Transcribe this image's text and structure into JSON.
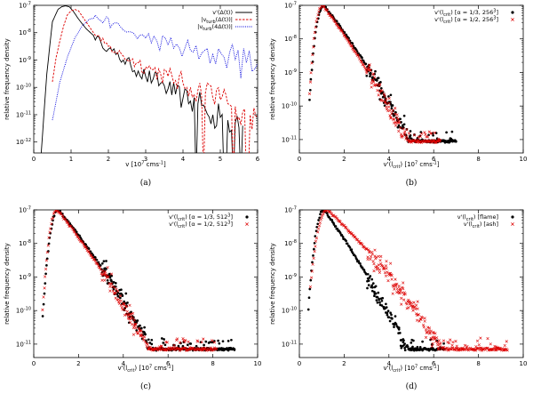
{
  "chart_data": [
    {
      "id": "a",
      "type": "line",
      "caption": "(a)",
      "xlabel": "v [10^7 cms^-1]",
      "ylabel": "relative frequency density",
      "xlim": [
        0,
        6
      ],
      "ylim_exp": [
        -12.4,
        -7
      ],
      "ylog": true,
      "xticks": [
        0,
        1,
        2,
        3,
        4,
        5,
        6
      ],
      "yticks_exp": [
        -12,
        -11,
        -10,
        -9,
        -8,
        -7
      ],
      "legend_position": "top-right",
      "series": [
        {
          "name": "v'(Δ(t))",
          "color": "#000000",
          "style": "solid",
          "x": [
            0.2,
            0.35,
            0.5,
            0.65,
            0.75,
            0.85,
            0.95,
            1.05,
            1.2,
            1.4,
            1.6,
            1.8,
            2.0,
            2.2,
            2.4,
            2.6,
            2.8,
            3.0,
            3.2,
            3.4,
            3.6,
            3.8,
            4.0,
            4.2,
            4.4,
            4.6,
            4.8,
            5.0,
            5.2,
            5.4,
            5.6
          ],
          "log10y": [
            -12.4,
            -9.5,
            -7.6,
            -7.15,
            -7.05,
            -7.02,
            -7.05,
            -7.2,
            -7.5,
            -7.85,
            -8.1,
            -8.35,
            -8.6,
            -8.8,
            -9.0,
            -9.2,
            -9.4,
            -9.6,
            -9.7,
            -9.85,
            -10.05,
            -10.25,
            -10.4,
            -10.5,
            -10.6,
            -10.8,
            -11.0,
            -11.1,
            -11.2,
            -11.3,
            -11.4
          ]
        },
        {
          "name": "|v_turb(Δ(t))|",
          "color": "#dd0000",
          "style": "dashed",
          "x": [
            0.5,
            0.6,
            0.7,
            0.8,
            0.9,
            1.0,
            1.1,
            1.2,
            1.4,
            1.6,
            1.8,
            2.0,
            2.2,
            2.4,
            2.6,
            2.8,
            3.0,
            3.2,
            3.4,
            3.6,
            3.8,
            4.0,
            4.2,
            4.4,
            4.6,
            4.8,
            5.0,
            5.2,
            5.4,
            5.6,
            5.8,
            6.0
          ],
          "log10y": [
            -9.8,
            -8.9,
            -8.3,
            -7.75,
            -7.35,
            -7.2,
            -7.15,
            -7.2,
            -7.6,
            -8.0,
            -8.3,
            -8.5,
            -8.7,
            -8.85,
            -9.0,
            -9.1,
            -9.25,
            -9.35,
            -9.5,
            -9.6,
            -9.75,
            -9.85,
            -10.0,
            -10.1,
            -10.2,
            -10.4,
            -10.45,
            -10.6,
            -10.7,
            -10.9,
            -11.0,
            -11.1
          ]
        },
        {
          "name": "|v_turb(4Δ(t))|",
          "color": "#0000dd",
          "style": "dotted",
          "x": [
            0.5,
            0.7,
            0.9,
            1.1,
            1.3,
            1.5,
            1.7,
            1.9,
            2.1,
            2.4,
            2.7,
            3.0,
            3.3,
            3.6,
            3.9,
            4.2,
            4.5,
            4.8,
            5.1,
            5.4,
            5.7,
            6.0
          ],
          "log10y": [
            -11.2,
            -9.8,
            -8.9,
            -8.2,
            -7.75,
            -7.5,
            -7.45,
            -7.55,
            -7.7,
            -7.9,
            -8.05,
            -8.2,
            -8.3,
            -8.45,
            -8.55,
            -8.65,
            -8.75,
            -8.8,
            -8.9,
            -9.0,
            -9.1,
            -9.15
          ]
        }
      ]
    },
    {
      "id": "b",
      "type": "scatter",
      "caption": "(b)",
      "xlabel": "v'(l_crit) [10^7 cms^-1]",
      "ylabel": "relative frequency density",
      "xlim": [
        0,
        10
      ],
      "ylim_exp": [
        -11.4,
        -7
      ],
      "ylog": true,
      "xticks": [
        0,
        2,
        4,
        6,
        8,
        10
      ],
      "yticks_exp": [
        -11,
        -10,
        -9,
        -8,
        -7
      ],
      "legend_position": "top-right",
      "series": [
        {
          "name": "v'(l_crit) [α = 1/3, 256^3]",
          "color": "#000000",
          "marker": "dot",
          "peak": 1.1,
          "decay": 0.85,
          "rise": 9.0,
          "xmin": 0.45,
          "xmax": 7.0,
          "floor": -11.05
        },
        {
          "name": "v'(l_crit) [α = 1/2, 256^3]",
          "color": "#dd0000",
          "marker": "x",
          "peak": 1.05,
          "decay": 0.88,
          "rise": 9.0,
          "xmin": 0.45,
          "xmax": 6.3,
          "floor": -11.05
        }
      ]
    },
    {
      "id": "c",
      "type": "scatter",
      "caption": "(c)",
      "xlabel": "v'(l_crit) [10^7 cms^-1]",
      "ylabel": "relative frequency density",
      "xlim": [
        0,
        10
      ],
      "ylim_exp": [
        -11.4,
        -7
      ],
      "ylog": true,
      "xticks": [
        0,
        2,
        4,
        6,
        8,
        10
      ],
      "yticks_exp": [
        -11,
        -10,
        -9,
        -8,
        -7
      ],
      "legend_position": "top-right",
      "series": [
        {
          "name": "v'(l_crit) [α = 1/3, 512^3]",
          "color": "#000000",
          "marker": "dot",
          "peak": 1.1,
          "decay": 0.8,
          "rise": 8.5,
          "xmin": 0.4,
          "xmax": 9.0,
          "floor": -11.15
        },
        {
          "name": "v'(l_crit) [α = 1/2, 512^3]",
          "color": "#dd0000",
          "marker": "x",
          "peak": 1.05,
          "decay": 0.82,
          "rise": 8.5,
          "xmin": 0.4,
          "xmax": 8.2,
          "floor": -11.15
        }
      ]
    },
    {
      "id": "d",
      "type": "scatter",
      "caption": "(d)",
      "xlabel": "v'(l_crit) [10^7 cms^-1]",
      "ylabel": "relative frequency density",
      "xlim": [
        0,
        10
      ],
      "ylim_exp": [
        -11.4,
        -7
      ],
      "ylog": true,
      "xticks": [
        0,
        2,
        4,
        6,
        8,
        10
      ],
      "yticks_exp": [
        -11,
        -10,
        -9,
        -8,
        -7
      ],
      "legend_position": "top-right",
      "series": [
        {
          "name": "v'(l_crit)  [flame]",
          "color": "#000000",
          "marker": "dot",
          "peak": 1.1,
          "decay": 0.92,
          "rise": 8.0,
          "xmin": 0.4,
          "xmax": 6.5,
          "floor": -11.15
        },
        {
          "name": "v'(l_crit)    [ash]",
          "color": "#dd0000",
          "marker": "x",
          "peak": 1.25,
          "decay": 0.62,
          "rise": 7.0,
          "xmin": 0.5,
          "xmax": 9.3,
          "floor": -11.15
        }
      ]
    }
  ]
}
